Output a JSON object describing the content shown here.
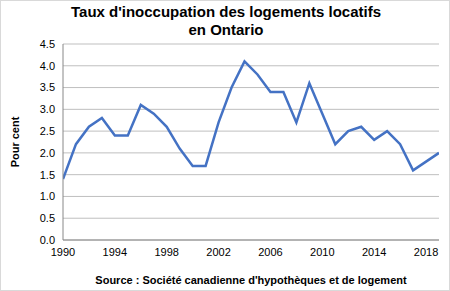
{
  "chart_data": {
    "type": "line",
    "title": "Taux d'inoccupation des logements locatifs en Ontario",
    "x_label": "Source : Société canadienne d'hypothèques et de logement",
    "y_label": "Pour cent",
    "x": [
      1990,
      1991,
      1992,
      1993,
      1994,
      1995,
      1996,
      1997,
      1998,
      1999,
      2000,
      2001,
      2002,
      2003,
      2004,
      2005,
      2006,
      2007,
      2008,
      2009,
      2010,
      2011,
      2012,
      2013,
      2014,
      2015,
      2016,
      2017,
      2018,
      2019
    ],
    "values": [
      1.4,
      2.2,
      2.6,
      2.8,
      2.4,
      2.4,
      3.1,
      2.9,
      2.6,
      2.1,
      1.7,
      1.7,
      2.7,
      3.5,
      4.1,
      3.8,
      3.4,
      3.4,
      2.7,
      3.6,
      2.9,
      2.2,
      2.5,
      2.6,
      2.3,
      2.5,
      2.2,
      1.6,
      1.8,
      2.0
    ],
    "color": "#4472c4",
    "xlim": [
      1990,
      2019
    ],
    "xticks": [
      1990,
      1994,
      1998,
      2002,
      2006,
      2010,
      2014,
      2018
    ],
    "ylim": [
      0,
      4.5
    ],
    "yticks": [
      {
        "value": 0,
        "label": "0.0"
      },
      0.5,
      {
        "value": 1,
        "label": "1.0"
      },
      1.5,
      {
        "value": 2,
        "label": "2.0"
      },
      2.5,
      {
        "value": 3,
        "label": "3.0"
      },
      3.5,
      {
        "value": 4,
        "label": "4.0"
      },
      4.5
    ],
    "grid": true
  }
}
